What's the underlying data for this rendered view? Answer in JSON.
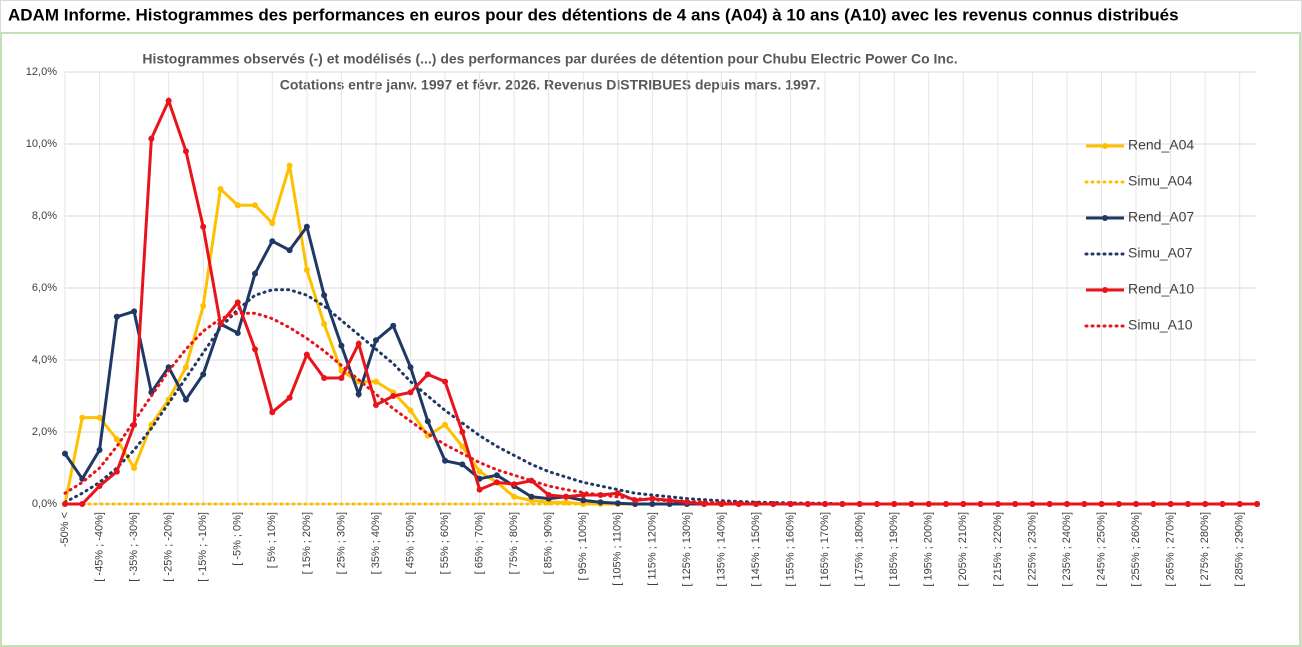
{
  "chart_data": {
    "type": "line",
    "header": "ADAM Informe. Histogrammes des performances en euros pour des détentions de 4 ans (A04) à 10 ans (A10) avec les revenus connus distribués",
    "title": "Histogrammes observés (-) et modélisés (...) des performances par durées de détention pour Chubu Electric Power Co Inc.",
    "subtitle": "Cotations entre janv. 1997 et févr. 2026. Revenus DISTRIBUES depuis mars. 1997.",
    "categories": [
      "-50% <",
      null,
      "[ -45% ; -40%]",
      null,
      "[ -35% ; -30%]",
      null,
      "[ -25% ; -20%]",
      null,
      "[ -15% ; -10%]",
      null,
      "[ -5% ; 0%]",
      null,
      "[ 5% ; 10%]",
      null,
      "[ 15% ; 20%]",
      null,
      "[ 25% ; 30%]",
      null,
      "[ 35% ; 40%]",
      null,
      "[ 45% ; 50%]",
      null,
      "[ 55% ; 60%]",
      null,
      "[ 65% ; 70%]",
      null,
      "[ 75% ; 80%]",
      null,
      "[ 85% ; 90%]",
      null,
      "[ 95% ; 100%]",
      null,
      "[ 105% ; 110%]",
      null,
      "[ 115% ; 120%]",
      null,
      "[ 125% ; 130%]",
      null,
      "[ 135% ; 140%]",
      null,
      "[ 145% ; 150%]",
      null,
      "[ 155% ; 160%]",
      null,
      "[ 165% ; 170%]",
      null,
      "[ 175% ; 180%]",
      null,
      "[ 185% ; 190%]",
      null,
      "[ 195% ; 200%]",
      null,
      "[ 205% ; 210%]",
      null,
      "[ 215% ; 220%]",
      null,
      "[ 225% ; 230%]",
      null,
      "[ 235% ; 240%]",
      null,
      "[ 245% ; 250%]",
      null,
      "[ 255% ; 260%]",
      null,
      "[ 265% ; 270%]",
      null,
      "[ 275% ; 280%]",
      null,
      "[ 285% ; 290%]",
      null
    ],
    "series": [
      {
        "name": "Rend_A04",
        "color": "#ffc000",
        "style": "solid",
        "values": [
          0,
          2.4,
          2.4,
          1.8,
          1.0,
          2.2,
          2.9,
          3.8,
          5.5,
          8.75,
          8.3,
          8.3,
          7.8,
          9.4,
          6.5,
          5.0,
          3.7,
          3.4,
          3.4,
          3.1,
          2.6,
          1.9,
          2.2,
          1.6,
          0.9,
          0.6,
          0.2,
          0.1,
          0.05,
          0.05,
          0,
          0,
          0,
          0,
          0,
          0,
          0,
          0,
          0,
          0,
          0,
          0,
          0,
          0,
          0,
          0,
          0,
          0,
          0,
          0,
          0,
          0,
          0,
          0,
          0,
          0,
          0,
          0,
          0,
          0,
          0,
          0,
          0,
          0,
          0,
          0,
          0,
          0,
          0,
          0
        ]
      },
      {
        "name": "Simu_A04",
        "color": "#ffc000",
        "style": "dotted",
        "values": [
          0,
          0,
          0,
          0,
          0,
          0,
          0,
          0,
          0,
          0,
          0,
          0,
          0,
          0,
          0,
          0,
          0,
          0,
          0,
          0,
          0,
          0,
          0,
          0,
          0,
          0,
          0,
          0,
          0,
          0,
          0,
          0,
          0,
          0,
          0,
          0,
          0,
          0,
          0,
          0,
          0,
          0,
          0,
          0,
          0,
          0,
          0,
          0,
          0,
          0,
          0,
          0,
          0,
          0,
          0,
          0,
          0,
          0,
          0,
          0,
          0,
          0,
          0,
          0,
          0,
          0,
          0,
          0,
          0,
          0
        ]
      },
      {
        "name": "Rend_A07",
        "color": "#1f3864",
        "style": "solid",
        "values": [
          1.4,
          0.7,
          1.5,
          5.2,
          5.35,
          3.1,
          3.8,
          2.9,
          3.6,
          5.0,
          4.75,
          6.4,
          7.3,
          7.05,
          7.7,
          5.8,
          4.4,
          3.05,
          4.55,
          4.95,
          3.8,
          2.3,
          1.2,
          1.1,
          0.7,
          0.8,
          0.5,
          0.2,
          0.15,
          0.2,
          0.1,
          0.05,
          0.02,
          0,
          0,
          0,
          0,
          0,
          0,
          0,
          0,
          0,
          0,
          0,
          0,
          0,
          0,
          0,
          0,
          0,
          0,
          0,
          0,
          0,
          0,
          0,
          0,
          0,
          0,
          0,
          0,
          0,
          0,
          0,
          0,
          0,
          0,
          0,
          0,
          0
        ]
      },
      {
        "name": "Simu_A07",
        "color": "#1f3864",
        "style": "dotted",
        "values": [
          0.05,
          0.3,
          0.6,
          1.0,
          1.5,
          2.1,
          2.8,
          3.5,
          4.2,
          4.9,
          5.4,
          5.8,
          5.95,
          5.95,
          5.8,
          5.5,
          5.1,
          4.7,
          4.3,
          3.9,
          3.4,
          3.0,
          2.6,
          2.25,
          1.9,
          1.6,
          1.35,
          1.1,
          0.9,
          0.75,
          0.6,
          0.5,
          0.4,
          0.3,
          0.25,
          0.2,
          0.15,
          0.12,
          0.09,
          0.07,
          0.05,
          0.04,
          0.03,
          0.02,
          0.02,
          0,
          0,
          0,
          0,
          0,
          0,
          0,
          0,
          0,
          0,
          0,
          0,
          0,
          0,
          0,
          0,
          0,
          0,
          0,
          0,
          0,
          0,
          0,
          0,
          0
        ]
      },
      {
        "name": "Rend_A10",
        "color": "#e8141b",
        "style": "solid",
        "values": [
          0,
          0,
          0.5,
          0.9,
          2.2,
          10.15,
          11.2,
          9.8,
          7.7,
          5.0,
          5.6,
          4.3,
          2.55,
          2.95,
          4.15,
          3.5,
          3.5,
          4.45,
          2.75,
          3.0,
          3.1,
          3.6,
          3.4,
          2.0,
          0.4,
          0.6,
          0.55,
          0.65,
          0.25,
          0.2,
          0.25,
          0.25,
          0.3,
          0.1,
          0.15,
          0.1,
          0.05,
          0,
          0,
          0,
          0,
          0,
          0,
          0,
          0,
          0,
          0,
          0,
          0,
          0,
          0,
          0,
          0,
          0,
          0,
          0,
          0,
          0,
          0,
          0,
          0,
          0,
          0,
          0,
          0,
          0,
          0,
          0,
          0,
          0
        ]
      },
      {
        "name": "Simu_A10",
        "color": "#e8141b",
        "style": "dotted",
        "values": [
          0.3,
          0.6,
          1.0,
          1.6,
          2.3,
          3.0,
          3.7,
          4.3,
          4.8,
          5.15,
          5.3,
          5.3,
          5.15,
          4.9,
          4.6,
          4.25,
          3.85,
          3.45,
          3.05,
          2.65,
          2.3,
          1.95,
          1.65,
          1.4,
          1.15,
          0.95,
          0.8,
          0.65,
          0.5,
          0.4,
          0.32,
          0.25,
          0.2,
          0.15,
          0.12,
          0.09,
          0.07,
          0.05,
          0.04,
          0.03,
          0.02,
          0,
          0,
          0,
          0,
          0,
          0,
          0,
          0,
          0,
          0,
          0,
          0,
          0,
          0,
          0,
          0,
          0,
          0,
          0,
          0,
          0,
          0,
          0,
          0,
          0,
          0,
          0,
          0,
          0
        ]
      }
    ],
    "ylim": [
      0,
      12
    ],
    "yticks": [
      {
        "value": 0,
        "label": "0,0%"
      },
      {
        "value": 2,
        "label": "2,0%"
      },
      {
        "value": 4,
        "label": "4,0%"
      },
      {
        "value": 6,
        "label": "6,0%"
      },
      {
        "value": 8,
        "label": "8,0%"
      },
      {
        "value": 10,
        "label": "10,0%"
      },
      {
        "value": 12,
        "label": "12,0%"
      }
    ],
    "grid": true,
    "legend": "right"
  }
}
